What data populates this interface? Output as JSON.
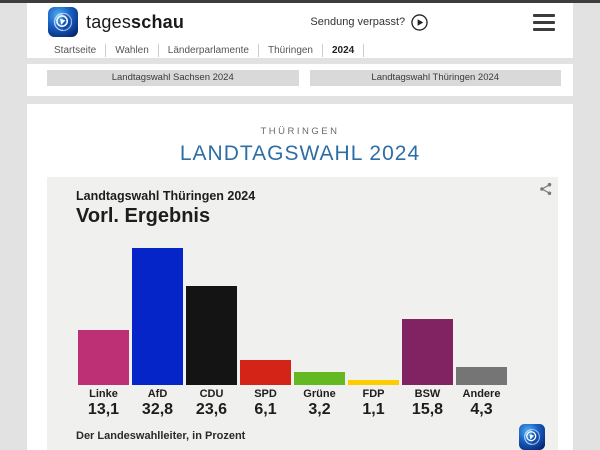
{
  "page": {
    "background": "#e2e2e2",
    "top_bar_color": "#3d3d3d"
  },
  "header": {
    "brand_regular": "tages",
    "brand_bold": "schau",
    "broadcast_link": "Sendung verpasst?",
    "breadcrumb": [
      "Startseite",
      "Wahlen",
      "Länderparlamente",
      "Thüringen",
      "2024"
    ],
    "breadcrumb_current": "2024"
  },
  "nav_tabs": [
    "Landtagswahl Sachsen 2024",
    "Landtagswahl Thüringen 2024"
  ],
  "main": {
    "kicker": "THÜRINGEN",
    "title": "LANDTAGSWAHL 2024",
    "title_color": "#2e6ea6"
  },
  "chart_data": {
    "type": "bar",
    "subtitle": "Landtagswahl Thüringen 2024",
    "title": "Vorl. Ergebnis",
    "categories": [
      "Linke",
      "AfD",
      "CDU",
      "SPD",
      "Grüne",
      "FDP",
      "BSW",
      "Andere"
    ],
    "values": [
      13.1,
      32.8,
      23.6,
      6.1,
      3.2,
      1.1,
      15.8,
      4.3
    ],
    "value_labels": [
      "13,1",
      "32,8",
      "23,6",
      "6,1",
      "3,2",
      "1,1",
      "15,8",
      "4,3"
    ],
    "bar_colors": [
      "#be3075",
      "#0625c8",
      "#141414",
      "#d42417",
      "#64b821",
      "#ffcc00",
      "#812263",
      "#757575"
    ],
    "unit": "Prozent",
    "ylim": [
      0,
      33
    ],
    "grid": false,
    "legend": false,
    "source": "Der Landeswahlleiter, in Prozent"
  }
}
